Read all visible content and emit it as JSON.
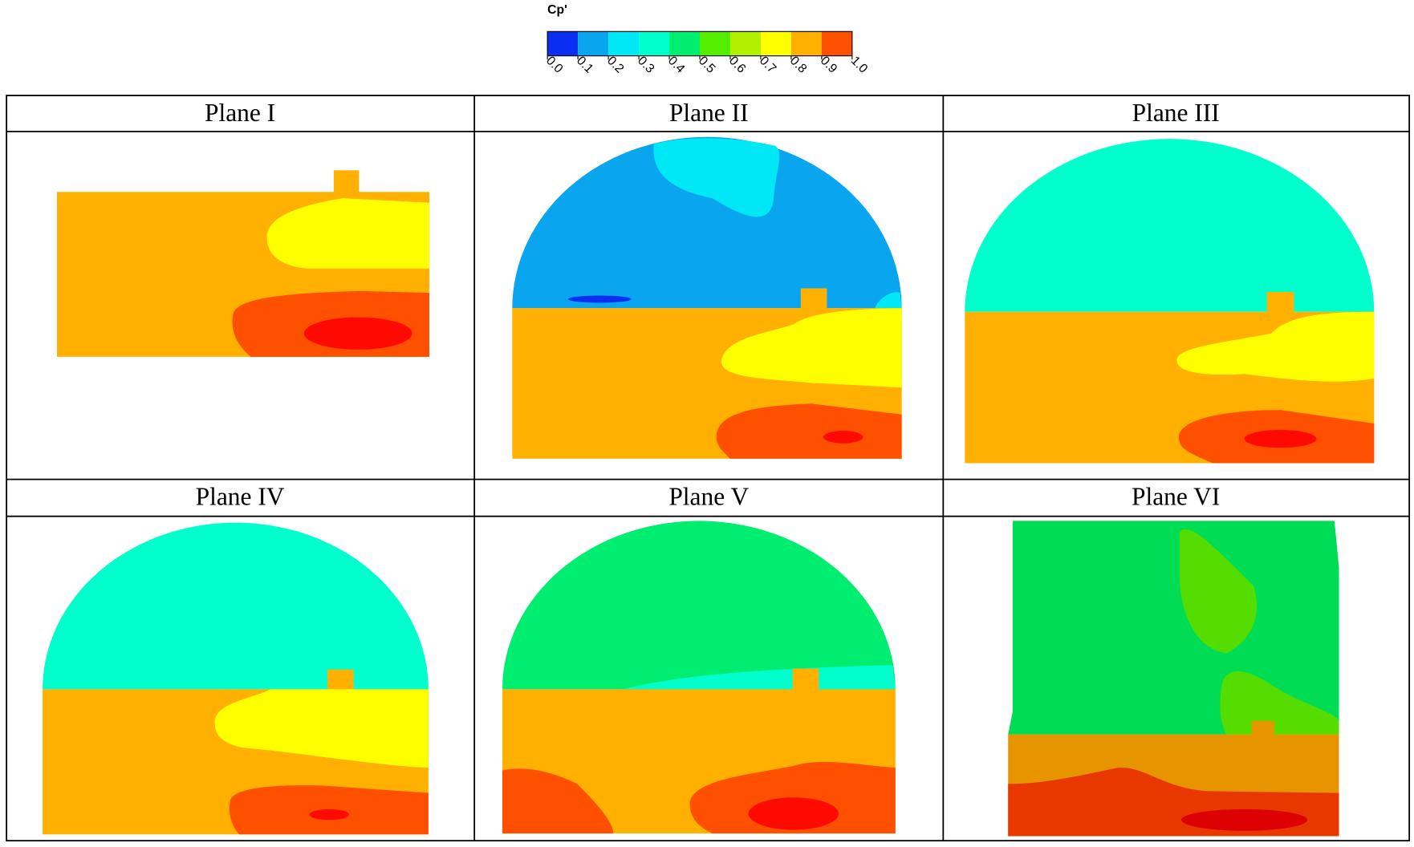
{
  "colorbar": {
    "title": "Cp'",
    "ticks": [
      {
        "value": 0,
        "label": "0.0"
      },
      {
        "value": 0.1,
        "label": "0.1"
      },
      {
        "value": 0.2,
        "label": "0.2"
      },
      {
        "value": 0.3,
        "label": "0.3"
      },
      {
        "value": 0.4,
        "label": "0.4"
      },
      {
        "value": 0.5,
        "label": "0.5"
      },
      {
        "value": 0.6,
        "label": "0.6"
      },
      {
        "value": 0.7,
        "label": "0.7"
      },
      {
        "value": 0.8,
        "label": "0.8"
      },
      {
        "value": 0.9,
        "label": "0.9"
      },
      {
        "value": 1,
        "label": "1.0"
      }
    ],
    "colors": [
      "#0a2ff0",
      "#0aa5ef",
      "#00e8f5",
      "#00ffcc",
      "#00ee70",
      "#55ee00",
      "#b0f000",
      "#ffff00",
      "#ffb000",
      "#ff5000"
    ]
  },
  "panels": [
    {
      "title": "Plane I"
    },
    {
      "title": "Plane II"
    },
    {
      "title": "Plane III"
    },
    {
      "title": "Plane IV"
    },
    {
      "title": "Plane V"
    },
    {
      "title": "Plane VI"
    }
  ]
}
